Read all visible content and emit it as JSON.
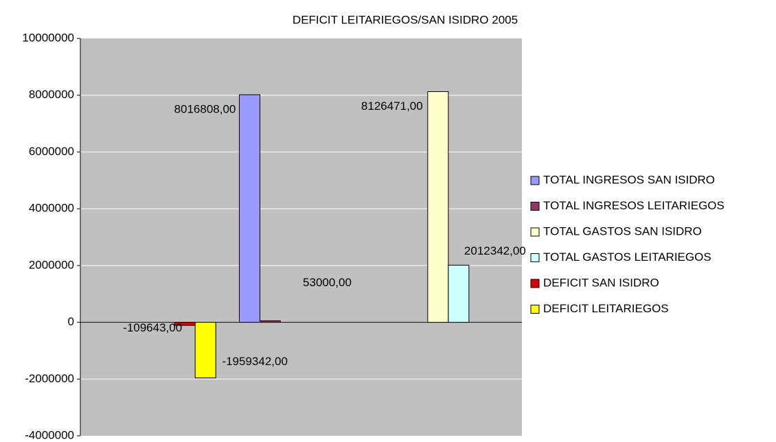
{
  "chart_data": {
    "type": "bar",
    "title": "DEFICIT LEITARIEGOS/SAN ISIDRO 2005",
    "categories": [
      null,
      null,
      null
    ],
    "series": [
      {
        "name": "TOTAL INGRESOS SAN ISIDRO",
        "color": "#9999ff",
        "values": [
          null,
          8016808,
          null
        ],
        "value_labels": [
          null,
          "8016808,00",
          null
        ]
      },
      {
        "name": "TOTAL INGRESOS LEITARIEGOS",
        "color": "#993366",
        "values": [
          null,
          53000,
          null
        ],
        "value_labels": [
          null,
          "53000,00",
          null
        ]
      },
      {
        "name": "TOTAL GASTOS SAN ISIDRO",
        "color": "#ffffcc",
        "values": [
          null,
          null,
          8126471
        ],
        "value_labels": [
          null,
          null,
          "8126471,00"
        ]
      },
      {
        "name": "TOTAL GASTOS LEITARIEGOS",
        "color": "#ccffff",
        "values": [
          null,
          null,
          2012342
        ],
        "value_labels": [
          null,
          null,
          "2012342,00"
        ]
      },
      {
        "name": "DEFICIT SAN ISIDRO",
        "color": "#e00000",
        "values": [
          -109643,
          null,
          null
        ],
        "value_labels": [
          "-109643,00",
          null,
          null
        ]
      },
      {
        "name": "DEFICIT LEITARIEGOS",
        "color": "#ffff00",
        "values": [
          -1959342,
          null,
          null
        ],
        "value_labels": [
          "-1959342,00",
          null,
          null
        ]
      }
    ],
    "ylim": [
      -4000000,
      10000000
    ],
    "yticks": [
      -4000000,
      -2000000,
      0,
      2000000,
      4000000,
      6000000,
      8000000,
      10000000
    ],
    "grid": true,
    "legend": "right"
  }
}
